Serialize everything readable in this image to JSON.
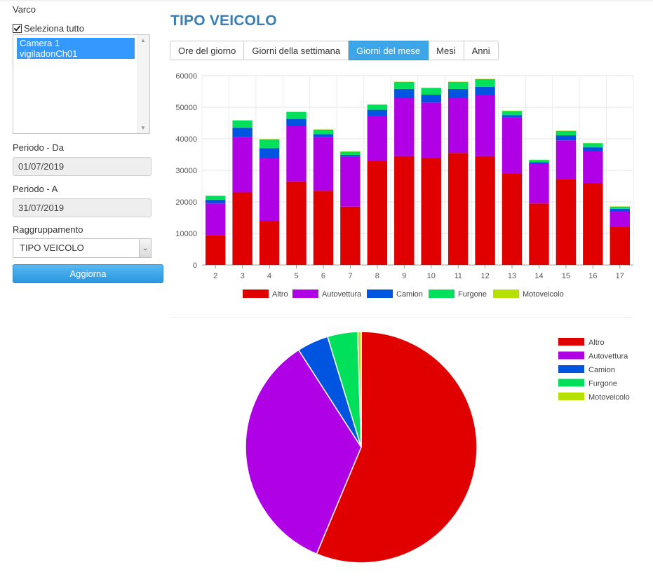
{
  "sidebar": {
    "varco_label": "Varco",
    "select_all_label": "Seleziona tutto",
    "cameras": [
      "Camera 1",
      "vigiladonCh01"
    ],
    "period_from_label": "Periodo - Da",
    "period_from_value": "01/07/2019",
    "period_to_label": "Periodo - A",
    "period_to_value": "31/07/2019",
    "grouping_label": "Raggruppamento",
    "grouping_value": "TIPO VEICOLO",
    "update_button": "Aggiorna"
  },
  "main": {
    "title": "TIPO VEICOLO",
    "tabs": [
      {
        "label": "Ore del giorno",
        "active": false
      },
      {
        "label": "Giorni della settimana",
        "active": false
      },
      {
        "label": "Giorni del mese",
        "active": true
      },
      {
        "label": "Mesi",
        "active": false
      },
      {
        "label": "Anni",
        "active": false
      }
    ]
  },
  "colors": {
    "Altro": "#e00000",
    "Autovettura": "#b000e6",
    "Camion": "#0055e0",
    "Furgone": "#00e05a",
    "Motoveicolo": "#b5e000"
  },
  "chart_data": [
    {
      "type": "bar",
      "stacked": true,
      "categories": [
        "2",
        "3",
        "4",
        "5",
        "6",
        "7",
        "8",
        "9",
        "10",
        "11",
        "12",
        "13",
        "14",
        "15",
        "16",
        "17"
      ],
      "series": [
        {
          "name": "Altro",
          "values": [
            9500,
            23000,
            14000,
            26500,
            23500,
            18500,
            33000,
            34500,
            34000,
            35500,
            34500,
            29000,
            19500,
            27300,
            26000,
            12000
          ]
        },
        {
          "name": "Autovettura",
          "values": [
            10000,
            17500,
            20000,
            17500,
            17000,
            15800,
            14200,
            18500,
            17500,
            17500,
            19500,
            17700,
            12500,
            12200,
            10000,
            5000
          ]
        },
        {
          "name": "Camion",
          "values": [
            1200,
            3000,
            3000,
            2300,
            1000,
            600,
            2000,
            2800,
            2500,
            2800,
            2500,
            800,
            600,
            1600,
            1300,
            800
          ]
        },
        {
          "name": "Furgone",
          "values": [
            1200,
            2300,
            2800,
            2200,
            1400,
            1000,
            1600,
            2200,
            2100,
            2200,
            2400,
            1300,
            700,
            1400,
            1300,
            700
          ]
        },
        {
          "name": "Motoveicolo",
          "values": [
            100,
            100,
            100,
            100,
            100,
            100,
            100,
            100,
            100,
            100,
            100,
            100,
            100,
            100,
            100,
            100
          ]
        }
      ],
      "ylim": [
        0,
        60000
      ],
      "yticks": [
        0,
        10000,
        20000,
        30000,
        40000,
        50000,
        60000
      ],
      "grid": true,
      "legend": "bottom"
    },
    {
      "type": "pie",
      "labels": [
        "Altro",
        "Autovettura",
        "Camion",
        "Furgone",
        "Motoveicolo"
      ],
      "values": [
        56.3,
        34.6,
        4.4,
        4.2,
        0.5
      ],
      "legend": "top-right"
    }
  ]
}
